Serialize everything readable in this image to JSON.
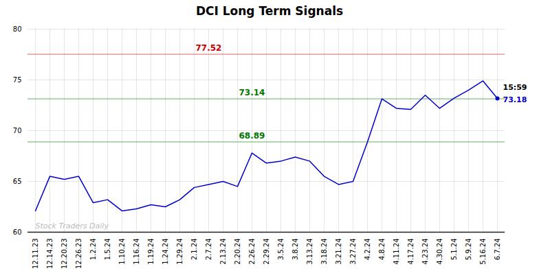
{
  "chart_data": {
    "type": "line",
    "title": "DCI Long Term Signals",
    "categories": [
      "12.11.23",
      "12.14.23",
      "12.20.23",
      "12.26.23",
      "1.2.24",
      "1.5.24",
      "1.10.24",
      "1.16.24",
      "1.19.24",
      "1.24.24",
      "1.29.24",
      "2.1.24",
      "2.7.24",
      "2.13.24",
      "2.20.24",
      "2.26.24",
      "2.29.24",
      "3.5.24",
      "3.8.24",
      "3.13.24",
      "3.18.24",
      "3.21.24",
      "3.27.24",
      "4.2.24",
      "4.8.24",
      "4.11.24",
      "4.17.24",
      "4.23.24",
      "4.30.24",
      "5.1.24",
      "5.9.24",
      "5.16.24",
      "6.7.24"
    ],
    "values": [
      62.1,
      65.5,
      65.2,
      65.5,
      62.9,
      63.2,
      62.1,
      62.3,
      62.7,
      62.5,
      63.2,
      64.4,
      64.7,
      65.0,
      64.5,
      67.8,
      66.8,
      67.0,
      67.4,
      67.0,
      65.5,
      64.7,
      65.0,
      68.89,
      73.14,
      72.2,
      72.1,
      73.5,
      72.2,
      73.2,
      74.0,
      74.9,
      73.18
    ],
    "color": "#0000cc",
    "ylim": [
      60,
      80
    ],
    "yticks": [
      60,
      65,
      70,
      75,
      80
    ],
    "grid": true,
    "reference_lines": [
      {
        "value": 77.52,
        "label": "77.52",
        "color": "#cc0000"
      },
      {
        "value": 73.14,
        "label": "73.14",
        "color": "#007700"
      },
      {
        "value": 68.89,
        "label": "68.89",
        "color": "#007700"
      }
    ],
    "end_label": "15:59",
    "end_value_label": "73.18",
    "watermark": "Stock Traders Daily"
  }
}
